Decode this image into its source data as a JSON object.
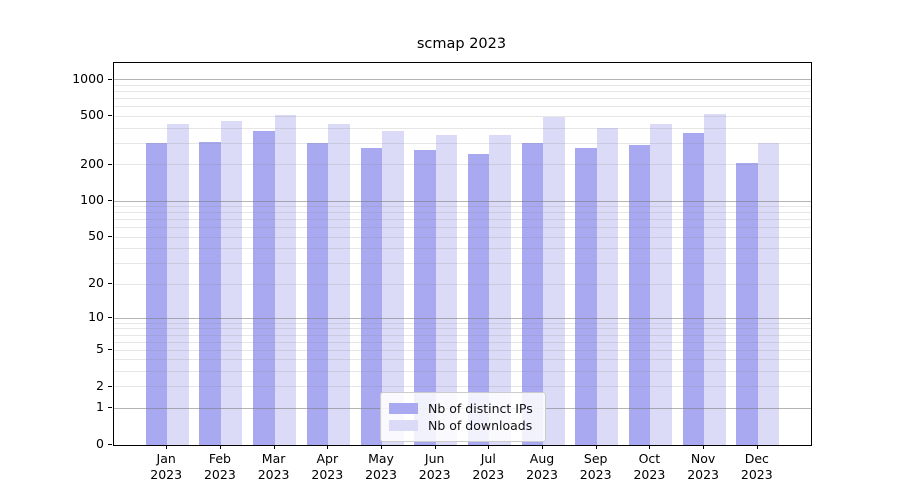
{
  "chart_data": {
    "type": "bar",
    "title": "scmap 2023",
    "categories": [
      "Jan",
      "Feb",
      "Mar",
      "Apr",
      "May",
      "Jun",
      "Jul",
      "Aug",
      "Sep",
      "Oct",
      "Nov",
      "Dec"
    ],
    "x_tick_year": "2023",
    "series": [
      {
        "name": "Nb of distinct IPs",
        "color": "#a9a9f2",
        "values": [
          300,
          310,
          380,
          300,
          275,
          265,
          245,
          300,
          275,
          290,
          365,
          207
        ]
      },
      {
        "name": "Nb of downloads",
        "color": "#dbdbf8",
        "values": [
          430,
          460,
          510,
          430,
          380,
          355,
          350,
          495,
          405,
          430,
          520,
          300
        ]
      }
    ],
    "xlabel": "",
    "ylabel": "",
    "y_scale": "log(value+1)",
    "y_axis_u_max": 3.139,
    "y_ticks": [
      0,
      1,
      2,
      5,
      10,
      20,
      50,
      100,
      200,
      500,
      1000
    ],
    "y_major_gridlines": [
      1,
      10,
      100,
      1000
    ],
    "y_minor_gridlines": [
      2,
      3,
      4,
      5,
      6,
      7,
      8,
      9,
      20,
      30,
      40,
      50,
      60,
      70,
      80,
      90,
      200,
      300,
      400,
      500,
      600,
      700,
      800,
      900
    ],
    "grid": true,
    "legend_position": "lower center",
    "colors": {
      "major_gridline": "rgba(120,120,120,0.55)",
      "minor_gridline": "rgba(128,128,128,0.20)",
      "axis": "#000000",
      "text": "#000000"
    }
  }
}
